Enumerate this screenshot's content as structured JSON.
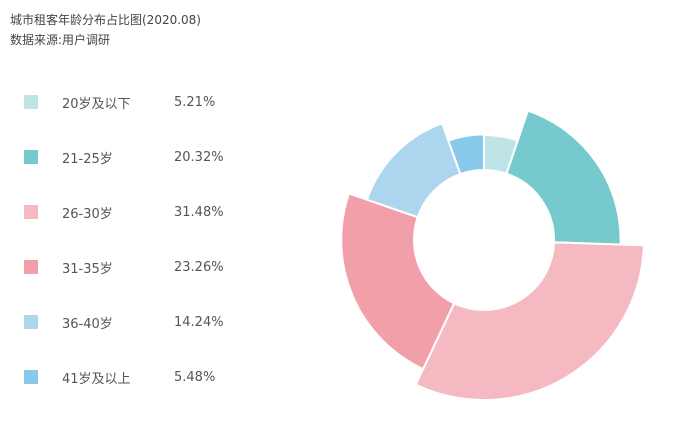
{
  "chart_data": {
    "type": "pie",
    "title": "城市租客年龄分布占比图(2020.08)",
    "subtitle": "数据来源:用户调研",
    "categories": [
      "20岁及以下",
      "21-25岁",
      "26-30岁",
      "31-35岁",
      "36-40岁",
      "41岁及以上"
    ],
    "values": [
      5.21,
      20.32,
      31.48,
      23.26,
      14.24,
      5.48
    ],
    "value_labels": [
      "5.21%",
      "20.32%",
      "31.48%",
      "23.26%",
      "14.24%",
      "5.48%"
    ],
    "colors": [
      "#bfe4e8",
      "#76c9cc",
      "#f4b9c1",
      "#f1a0aa",
      "#acd5ee",
      "#88c9ec"
    ],
    "legend": "left",
    "style": "rose-donut"
  }
}
